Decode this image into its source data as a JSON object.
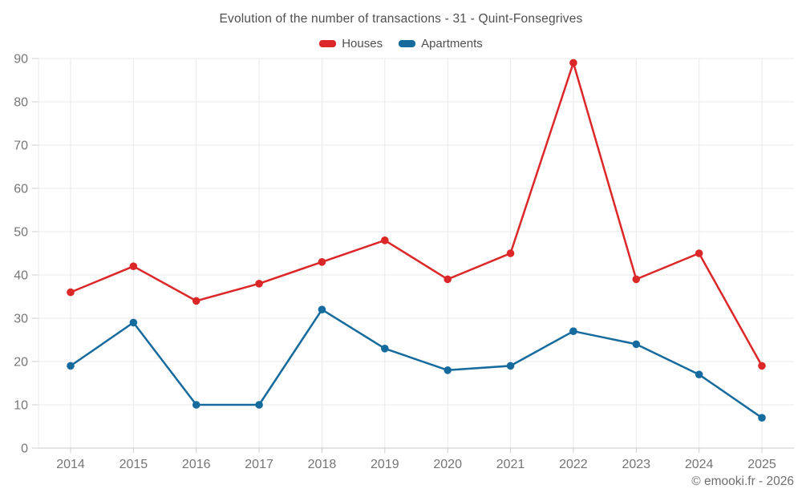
{
  "chart_data": {
    "type": "line",
    "title": "Evolution of the number of transactions - 31 - Quint-Fonsegrives",
    "categories": [
      "2014",
      "2015",
      "2016",
      "2017",
      "2018",
      "2019",
      "2020",
      "2021",
      "2022",
      "2023",
      "2024",
      "2025"
    ],
    "series": [
      {
        "name": "Houses",
        "color": "#db2727",
        "values": [
          36,
          42,
          34,
          38,
          43,
          48,
          39,
          45,
          89,
          39,
          45,
          19
        ]
      },
      {
        "name": "Apartments",
        "color": "#166b9e",
        "values": [
          19,
          29,
          10,
          10,
          32,
          23,
          18,
          19,
          27,
          24,
          17,
          7
        ]
      }
    ],
    "ylim": [
      0,
      90
    ],
    "ytick_step": 10,
    "grid": true,
    "legend_position": "top",
    "footer": "© emooki.fr - 2026"
  }
}
